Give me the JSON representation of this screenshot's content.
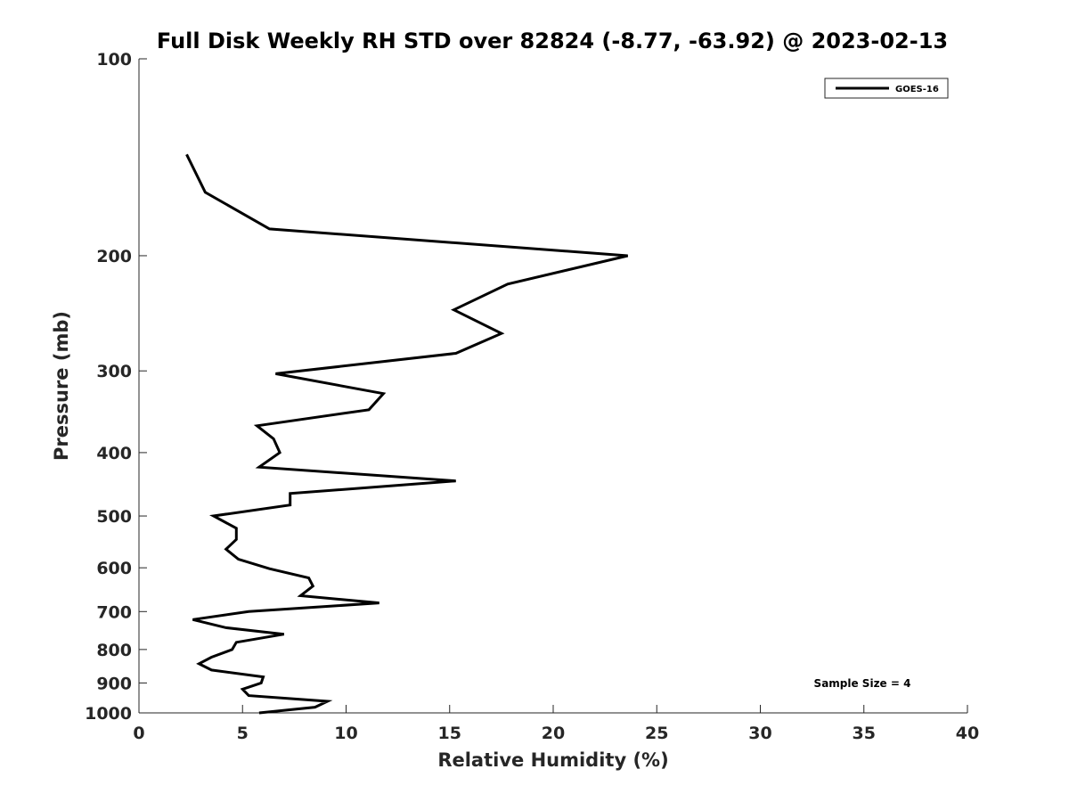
{
  "chart_data": {
    "type": "line",
    "title": "Full Disk Weekly RH STD over 82824 (-8.77, -63.92) @ 2023-02-13",
    "xlabel": "Relative Humidity (%)",
    "ylabel": "Pressure (mb)",
    "xlim": [
      0,
      40
    ],
    "ylim": [
      1000,
      100
    ],
    "yscale": "log",
    "grid": false,
    "legend_position": "top-right",
    "x_ticks": [
      "0",
      "5",
      "10",
      "15",
      "20",
      "25",
      "30",
      "35",
      "40"
    ],
    "y_ticks": [
      "100",
      "200",
      "300",
      "400",
      "500",
      "600",
      "700",
      "800",
      "900",
      "1000"
    ],
    "series": [
      {
        "name": "GOES-16",
        "color": "#000000",
        "points": [
          [
            2.3,
            140
          ],
          [
            3.2,
            160
          ],
          [
            6.3,
            182
          ],
          [
            23.6,
            200
          ],
          [
            17.8,
            221
          ],
          [
            15.2,
            242
          ],
          [
            17.5,
            263
          ],
          [
            15.3,
            282
          ],
          [
            6.6,
            303
          ],
          [
            11.8,
            325
          ],
          [
            11.1,
            344
          ],
          [
            5.7,
            364
          ],
          [
            6.5,
            381
          ],
          [
            6.8,
            400
          ],
          [
            5.8,
            421
          ],
          [
            15.3,
            442
          ],
          [
            7.3,
            462
          ],
          [
            7.3,
            481
          ],
          [
            3.6,
            500
          ],
          [
            4.7,
            522
          ],
          [
            4.7,
            543
          ],
          [
            4.2,
            562
          ],
          [
            4.8,
            582
          ],
          [
            6.3,
            602
          ],
          [
            8.2,
            622
          ],
          [
            8.4,
            640
          ],
          [
            7.8,
            662
          ],
          [
            11.6,
            679
          ],
          [
            5.3,
            700
          ],
          [
            2.6,
            720
          ],
          [
            4.2,
            741
          ],
          [
            7.0,
            758
          ],
          [
            4.7,
            780
          ],
          [
            4.5,
            800
          ],
          [
            3.5,
            822
          ],
          [
            2.9,
            841
          ],
          [
            3.5,
            860
          ],
          [
            6.0,
            881
          ],
          [
            5.9,
            900
          ],
          [
            5.0,
            920
          ],
          [
            5.3,
            941
          ],
          [
            9.1,
            960
          ],
          [
            8.5,
            980
          ],
          [
            5.8,
            1000
          ]
        ]
      }
    ],
    "annotation": "Sample Size = 4"
  }
}
